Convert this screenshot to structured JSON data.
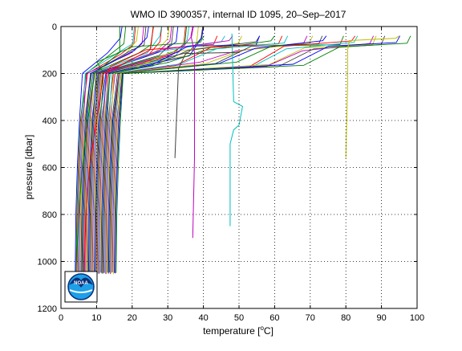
{
  "chart_data": {
    "type": "line",
    "title": "WMO ID 3900357, internal ID 1095, 20–Sep–2017",
    "xlabel_prefix": "temperature [",
    "xlabel_unit_sup": "o",
    "xlabel_suffix": "C]",
    "ylabel": "pressure [dbar]",
    "xlim": [
      0,
      100
    ],
    "ylim": [
      0,
      1200
    ],
    "y_reversed": true,
    "grid": true,
    "grid_style": "dotted",
    "xticks": [
      0,
      10,
      20,
      30,
      40,
      50,
      60,
      70,
      80,
      90,
      100
    ],
    "yticks": [
      0,
      200,
      400,
      600,
      800,
      1000,
      1200
    ],
    "logo_text": "NOAA",
    "series_colors": [
      "#0000ff",
      "#008000",
      "#ff0000",
      "#00bfbf",
      "#bf00bf",
      "#bfbf00",
      "#404040"
    ],
    "profile_count": 44,
    "series": [
      {
        "pressure": [
          0,
          110,
          200,
          400,
          600,
          800,
          1050
        ],
        "temperature": [
          16.5,
          16.5,
          9.5,
          7.5,
          6.0,
          5.0,
          4.2
        ]
      },
      {
        "pressure": [
          0,
          100,
          200,
          400,
          600,
          800,
          1050
        ],
        "temperature": [
          26.0,
          25.0,
          12.0,
          10.0,
          8.0,
          7.0,
          6.5
        ]
      },
      {
        "pressure": [
          30,
          320,
          340,
          420,
          440,
          500,
          850
        ],
        "temperature": [
          48.0,
          48.5,
          51.0,
          50.0,
          48.5,
          47.5,
          47.5
        ]
      },
      {
        "pressure": [
          0,
          40,
          110,
          560,
          900
        ],
        "temperature": [
          37.0,
          36.5,
          37.5,
          37.5,
          37.0
        ]
      },
      {
        "pressure": [
          40,
          50,
          60,
          100,
          250,
          560
        ],
        "temperature": [
          95.0,
          94.0,
          81.0,
          80.5,
          80.5,
          80.0
        ]
      },
      {
        "pressure": [
          110,
          115,
          180,
          560
        ],
        "temperature": [
          50.0,
          35.0,
          33.0,
          32.0
        ]
      }
    ]
  }
}
